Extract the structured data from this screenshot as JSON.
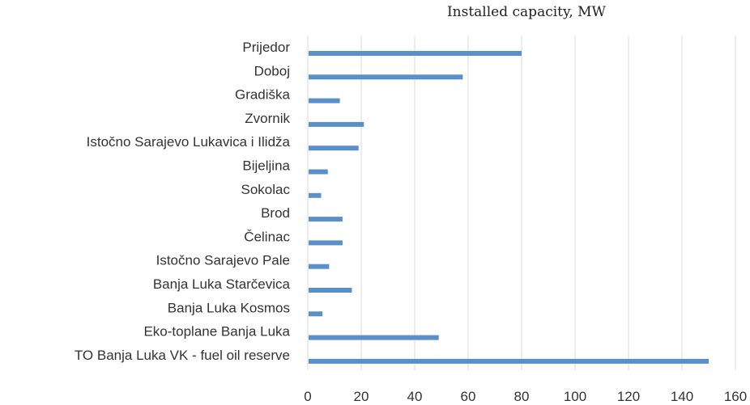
{
  "chart_data": {
    "type": "bar",
    "orientation": "horizontal",
    "title": "Installed capacity, MW",
    "categories": [
      "Prijedor",
      "Doboj",
      "Gradiška",
      "Zvornik",
      "Istočno Sarajevo Lukavica i Ilidža",
      "Bijeljina",
      "Sokolac",
      "Brod",
      "Čelinac",
      "Istočno Sarajevo Pale",
      "Banja Luka Starčevica",
      "Banja Luka Kosmos",
      "Eko-toplane Banja Luka",
      "TO Banja Luka VK - fuel oil reserve"
    ],
    "values": [
      80,
      58,
      12,
      21,
      19,
      7.5,
      5,
      13,
      13,
      8,
      16.5,
      5.5,
      49,
      150
    ],
    "xlim": [
      0,
      160
    ],
    "xticks": [
      0,
      20,
      40,
      60,
      80,
      100,
      120,
      140,
      160
    ],
    "grid": "vertical",
    "bar_color": "#5b8fc9",
    "legend": "none"
  }
}
